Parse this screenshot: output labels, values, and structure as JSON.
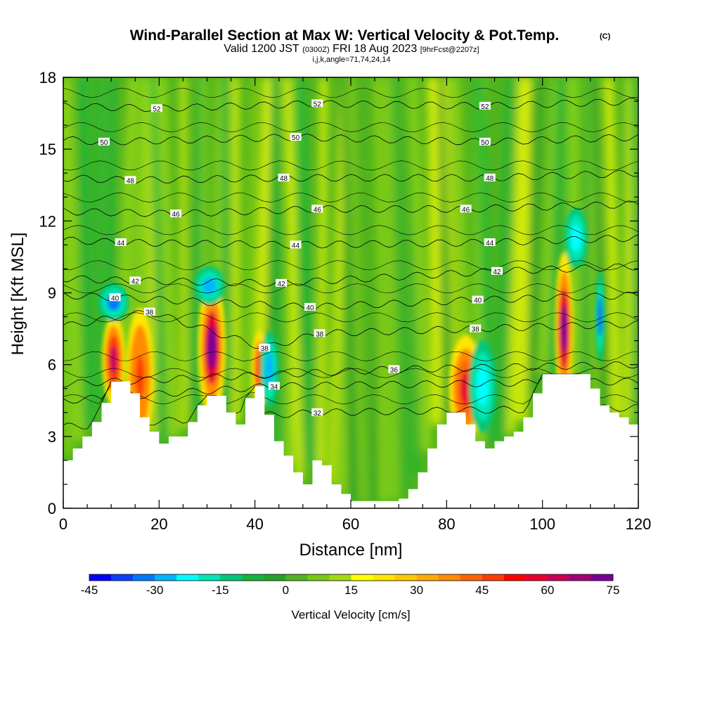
{
  "title": {
    "main": "Wind-Parallel Section at Max W: Vertical Velocity & Pot.Temp.",
    "copyright": "(C)",
    "valid_prefix": "Valid 1200 JST",
    "valid_utc": "(0300Z)",
    "valid_date": "FRI 18 Aug 2023",
    "forecast": "[9hrFcst@2207z]",
    "indices": "i,j,k,angle=71,74,24,14"
  },
  "colors": {
    "contour": "#000000",
    "terrain": "#ffffff",
    "background": "#ffffff"
  },
  "chart_data": {
    "type": "heatmap",
    "xlabel": "Distance [nm]",
    "ylabel": "Height [Kft MSL]",
    "xlim": [
      0,
      120
    ],
    "ylim": [
      0,
      18
    ],
    "x_ticks": [
      "0",
      "20",
      "40",
      "60",
      "80",
      "100",
      "120"
    ],
    "y_ticks": [
      "0",
      "3",
      "6",
      "9",
      "12",
      "15",
      "18"
    ],
    "x_tick_values": [
      0,
      20,
      40,
      60,
      80,
      100,
      120
    ],
    "y_tick_values": [
      0,
      3,
      6,
      9,
      12,
      15,
      18
    ],
    "colorbar": {
      "title": "Vertical Velocity [cm/s]",
      "ticks": [
        "-45",
        "-30",
        "-15",
        "0",
        "15",
        "30",
        "45",
        "60",
        "75"
      ],
      "tick_values": [
        -45,
        -30,
        -15,
        0,
        15,
        30,
        45,
        60,
        75
      ],
      "levels": [
        -45,
        -40,
        -35,
        -30,
        -25,
        -20,
        -15,
        -10,
        -5,
        0,
        5,
        10,
        15,
        20,
        25,
        30,
        35,
        40,
        45,
        50,
        55,
        60,
        65,
        70,
        75
      ],
      "colors": [
        "#0000ff",
        "#0a40ff",
        "#0078ff",
        "#00b4ff",
        "#00ffff",
        "#00e6b4",
        "#00c878",
        "#14b43c",
        "#28a028",
        "#50b41e",
        "#78c814",
        "#a0dc0a",
        "#ffff00",
        "#ffe600",
        "#ffc800",
        "#ffaa00",
        "#ff8c00",
        "#ff6400",
        "#ff3c00",
        "#ff0000",
        "#e6002d",
        "#c8005a",
        "#a00078",
        "#780096"
      ]
    },
    "terrain_profile": {
      "x": [
        0,
        2,
        4,
        6,
        8,
        10,
        12,
        14,
        16,
        18,
        20,
        22,
        24,
        26,
        28,
        30,
        32,
        34,
        36,
        38,
        40,
        42,
        44,
        46,
        48,
        50,
        52,
        54,
        56,
        58,
        60,
        62,
        64,
        66,
        68,
        70,
        72,
        74,
        76,
        78,
        80,
        82,
        84,
        86,
        88,
        90,
        92,
        94,
        96,
        98,
        100,
        102,
        104,
        106,
        108,
        110,
        112,
        114,
        116,
        118,
        120
      ],
      "height": [
        2.0,
        2.5,
        3.0,
        3.6,
        4.4,
        5.3,
        5.3,
        4.8,
        3.8,
        3.2,
        2.7,
        3.0,
        3.0,
        3.6,
        4.3,
        4.7,
        4.7,
        4.0,
        3.5,
        4.6,
        5.1,
        3.9,
        2.8,
        2.2,
        1.5,
        1.0,
        2.0,
        1.8,
        1.0,
        0.6,
        0.3,
        0.3,
        0.3,
        0.3,
        0.3,
        0.4,
        0.8,
        1.5,
        2.5,
        3.5,
        4.0,
        4.0,
        3.5,
        2.8,
        2.5,
        2.8,
        3.0,
        3.2,
        3.8,
        4.8,
        5.6,
        5.6,
        5.6,
        5.6,
        5.6,
        5.0,
        4.3,
        4.0,
        3.8,
        3.5,
        3.4
      ]
    },
    "updraft_cores": [
      {
        "x": 10.5,
        "y": 6.2,
        "w": 1.5,
        "h": 1.2,
        "value": 60
      },
      {
        "x": 16.0,
        "y": 5.5,
        "w": 1.8,
        "h": 1.8,
        "value": 45
      },
      {
        "x": 31.0,
        "y": 6.7,
        "w": 1.8,
        "h": 1.8,
        "value": 72
      },
      {
        "x": 41.0,
        "y": 5.8,
        "w": 1.0,
        "h": 1.0,
        "value": 50
      },
      {
        "x": 84.0,
        "y": 5.0,
        "w": 2.2,
        "h": 1.4,
        "value": 55
      },
      {
        "x": 104.5,
        "y": 7.5,
        "w": 1.2,
        "h": 2.0,
        "value": 70
      }
    ],
    "downdraft_cores": [
      {
        "x": 10.5,
        "y": 8.6,
        "w": 2.0,
        "h": 0.5,
        "value": -35
      },
      {
        "x": 30.5,
        "y": 9.3,
        "w": 2.0,
        "h": 0.5,
        "value": -30
      },
      {
        "x": 43.0,
        "y": 5.8,
        "w": 1.2,
        "h": 1.0,
        "value": -30
      },
      {
        "x": 87.5,
        "y": 5.1,
        "w": 1.8,
        "h": 1.2,
        "value": -25
      },
      {
        "x": 107.0,
        "y": 11.3,
        "w": 1.5,
        "h": 0.8,
        "value": -25
      },
      {
        "x": 112.0,
        "y": 8.0,
        "w": 0.6,
        "h": 1.2,
        "value": -40
      }
    ],
    "theta_contour_labels": [
      {
        "text": "52",
        "x": 19.5,
        "y": 16.7
      },
      {
        "text": "52",
        "x": 53.0,
        "y": 16.9
      },
      {
        "text": "52",
        "x": 88.0,
        "y": 16.8
      },
      {
        "text": "50",
        "x": 8.5,
        "y": 15.3
      },
      {
        "text": "50",
        "x": 48.5,
        "y": 15.5
      },
      {
        "text": "50",
        "x": 88.0,
        "y": 15.3
      },
      {
        "text": "48",
        "x": 14.0,
        "y": 13.7
      },
      {
        "text": "48",
        "x": 46.0,
        "y": 13.8
      },
      {
        "text": "48",
        "x": 89.0,
        "y": 13.8
      },
      {
        "text": "46",
        "x": 23.5,
        "y": 12.3
      },
      {
        "text": "46",
        "x": 53.0,
        "y": 12.5
      },
      {
        "text": "46",
        "x": 84.0,
        "y": 12.5
      },
      {
        "text": "44",
        "x": 12.0,
        "y": 11.1
      },
      {
        "text": "44",
        "x": 48.5,
        "y": 11.0
      },
      {
        "text": "44",
        "x": 89.0,
        "y": 11.1
      },
      {
        "text": "42",
        "x": 15.0,
        "y": 9.5
      },
      {
        "text": "42",
        "x": 45.5,
        "y": 9.4
      },
      {
        "text": "42",
        "x": 90.5,
        "y": 9.9
      },
      {
        "text": "40",
        "x": 10.8,
        "y": 8.8
      },
      {
        "text": "40",
        "x": 51.5,
        "y": 8.4
      },
      {
        "text": "40",
        "x": 86.5,
        "y": 8.7
      },
      {
        "text": "38",
        "x": 18.0,
        "y": 8.2
      },
      {
        "text": "38",
        "x": 53.5,
        "y": 7.3
      },
      {
        "text": "38",
        "x": 86.0,
        "y": 7.5
      },
      {
        "text": "38",
        "x": 42.0,
        "y": 6.7
      },
      {
        "text": "36",
        "x": 69.0,
        "y": 5.8
      },
      {
        "text": "34",
        "x": 44.0,
        "y": 5.1
      },
      {
        "text": "32",
        "x": 53.0,
        "y": 4.0
      }
    ]
  }
}
